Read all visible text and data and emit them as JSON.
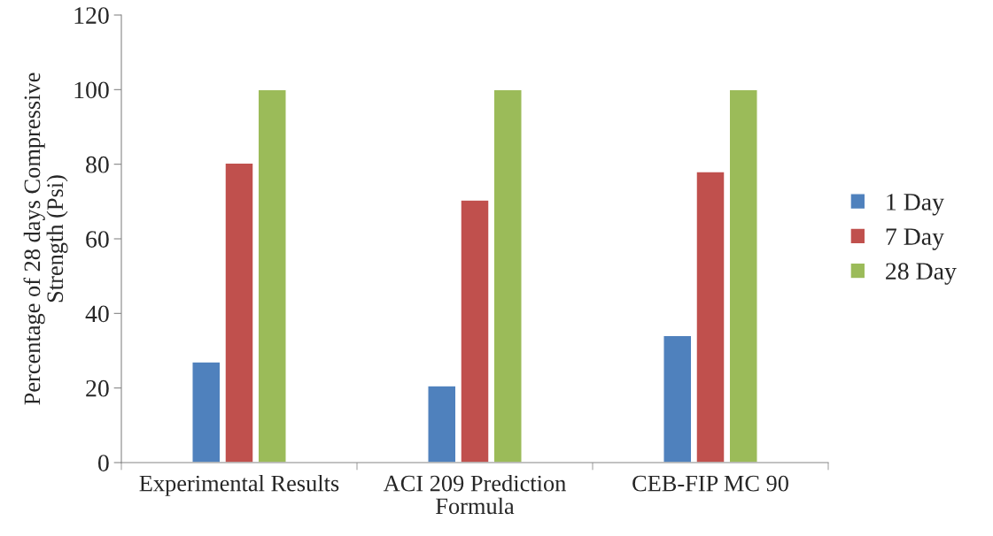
{
  "chart_data": {
    "type": "bar",
    "ylabel": "Percentage of 28 days Compressive\nStrength (Psi)",
    "categories": [
      "Experimental Results",
      "ACI 209 Prediction\nFormula",
      "CEB-FIP MC 90"
    ],
    "series": [
      {
        "name": "1 Day",
        "color": "#4f81bd",
        "values": [
          27.0,
          20.6,
          34.1
        ]
      },
      {
        "name": "7 Day",
        "color": "#c0504d",
        "values": [
          80.3,
          70.4,
          78.0
        ]
      },
      {
        "name": "28 Day",
        "color": "#9bbb59",
        "values": [
          100,
          100,
          100
        ]
      }
    ],
    "ylim": [
      0,
      120
    ],
    "yticks": [
      0,
      20,
      40,
      60,
      80,
      100,
      120
    ],
    "grid": false,
    "legend": "right"
  }
}
